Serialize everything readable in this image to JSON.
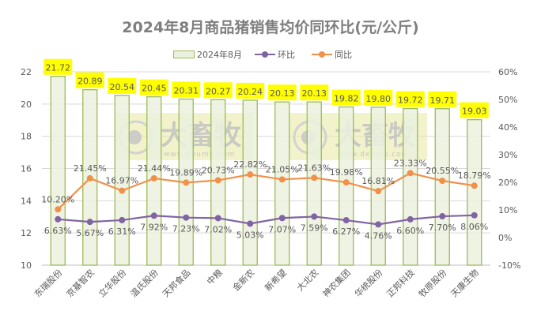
{
  "chart_data": {
    "type": "bar+line",
    "title": "2024年8月商品猪销售均价同环比(元/公斤)",
    "categories": [
      "东瑞股份",
      "京基智农",
      "立华股份",
      "温氏股份",
      "天邦食品",
      "中粮",
      "金新农",
      "新希望",
      "大北农",
      "神农集团",
      "华统股份",
      "正邦科技",
      "牧原股份",
      "天康生物"
    ],
    "series": [
      {
        "name": "2024年8月",
        "type": "bar",
        "axis": "left",
        "color": "#ebf1de",
        "border": "#9bbb59",
        "label_bg": "#ffff00",
        "values": [
          21.72,
          20.89,
          20.54,
          20.45,
          20.31,
          20.27,
          20.24,
          20.13,
          20.13,
          19.82,
          19.8,
          19.72,
          19.71,
          19.03
        ]
      },
      {
        "name": "环比",
        "type": "line",
        "axis": "right",
        "unit": "%",
        "color": "#8064a2",
        "values": [
          6.63,
          5.67,
          6.31,
          7.92,
          7.23,
          7.02,
          5.03,
          7.07,
          7.59,
          6.27,
          4.76,
          6.6,
          7.7,
          8.06
        ]
      },
      {
        "name": "同比",
        "type": "line",
        "axis": "right",
        "unit": "%",
        "color": "#f0914a",
        "values": [
          10.2,
          21.45,
          16.97,
          21.44,
          19.89,
          20.73,
          22.82,
          21.05,
          21.63,
          19.98,
          16.81,
          23.33,
          20.55,
          18.79
        ]
      }
    ],
    "left_axis": {
      "min": 10,
      "max": 22,
      "step": 2,
      "ticks": [
        "10",
        "12",
        "14",
        "16",
        "18",
        "20",
        "22"
      ]
    },
    "right_axis": {
      "min": -10,
      "max": 60,
      "step": 10,
      "ticks": [
        "-10%",
        "0%",
        "10%",
        "20%",
        "30%",
        "40%",
        "50%",
        "60%"
      ]
    },
    "xlabel": "",
    "ylabel": "",
    "grid": true,
    "legend_position": "top"
  },
  "title": "2024年8月商品猪销售均价同环比(元/公斤)",
  "legend": {
    "bar_label": "2024年8月",
    "mom_label": "环比",
    "yoy_label": "同比"
  },
  "watermark": {
    "brand": "大畜牧",
    "url": "www.dxumu.com"
  }
}
